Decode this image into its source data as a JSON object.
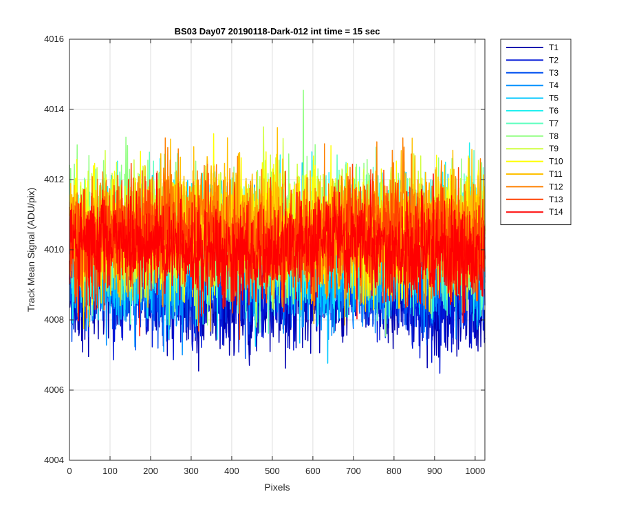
{
  "chart_data": {
    "type": "line",
    "title": "BS03 Day07 20190118-Dark-012 int time = 15 sec",
    "xlabel": "Pixels",
    "ylabel": "Track Mean Signal (ADU/pix)",
    "xlim": [
      0,
      1024
    ],
    "ylim": [
      4004,
      4016
    ],
    "xticks": [
      0,
      100,
      200,
      300,
      400,
      500,
      600,
      700,
      800,
      900,
      1000
    ],
    "yticks": [
      4004,
      4006,
      4008,
      4010,
      4012,
      4014,
      4016
    ],
    "grid": true,
    "legend_position": "outside-top-right",
    "x_count": 1024,
    "series": [
      {
        "name": "T1",
        "color": "#0000b0",
        "mean": 4008.7,
        "sd": 0.75,
        "min": 4005.3,
        "max": 4011.6
      },
      {
        "name": "T2",
        "color": "#0016d8",
        "mean": 4009.0,
        "sd": 0.75,
        "min": 4005.6,
        "max": 4011.8
      },
      {
        "name": "T3",
        "color": "#0050f0",
        "mean": 4009.3,
        "sd": 0.75,
        "min": 4006.0,
        "max": 4012.2
      },
      {
        "name": "T4",
        "color": "#0090ff",
        "mean": 4009.6,
        "sd": 0.8,
        "min": 4006.3,
        "max": 4012.6
      },
      {
        "name": "T5",
        "color": "#00c8ff",
        "mean": 4009.9,
        "sd": 0.85,
        "min": 4006.6,
        "max": 4014.7
      },
      {
        "name": "T6",
        "color": "#20f0f0",
        "mean": 4010.1,
        "sd": 0.85,
        "min": 4006.8,
        "max": 4014.5
      },
      {
        "name": "T7",
        "color": "#60ffc0",
        "mean": 4010.3,
        "sd": 0.85,
        "min": 4007.0,
        "max": 4014.6
      },
      {
        "name": "T8",
        "color": "#90ff80",
        "mean": 4010.5,
        "sd": 0.85,
        "min": 4007.2,
        "max": 4015.0
      },
      {
        "name": "T9",
        "color": "#d0ff40",
        "mean": 4010.6,
        "sd": 0.85,
        "min": 4007.2,
        "max": 4014.4
      },
      {
        "name": "T10",
        "color": "#ffff00",
        "mean": 4010.6,
        "sd": 0.85,
        "min": 4007.3,
        "max": 4014.3
      },
      {
        "name": "T11",
        "color": "#ffc000",
        "mean": 4010.6,
        "sd": 0.85,
        "min": 4007.3,
        "max": 4014.6
      },
      {
        "name": "T12",
        "color": "#ff8000",
        "mean": 4010.5,
        "sd": 0.85,
        "min": 4007.2,
        "max": 4014.6
      },
      {
        "name": "T13",
        "color": "#ff4000",
        "mean": 4010.3,
        "sd": 0.8,
        "min": 4006.9,
        "max": 4015.2
      },
      {
        "name": "T14",
        "color": "#ff0000",
        "mean": 4010.0,
        "sd": 0.7,
        "min": 4006.2,
        "max": 4014.0
      }
    ]
  }
}
